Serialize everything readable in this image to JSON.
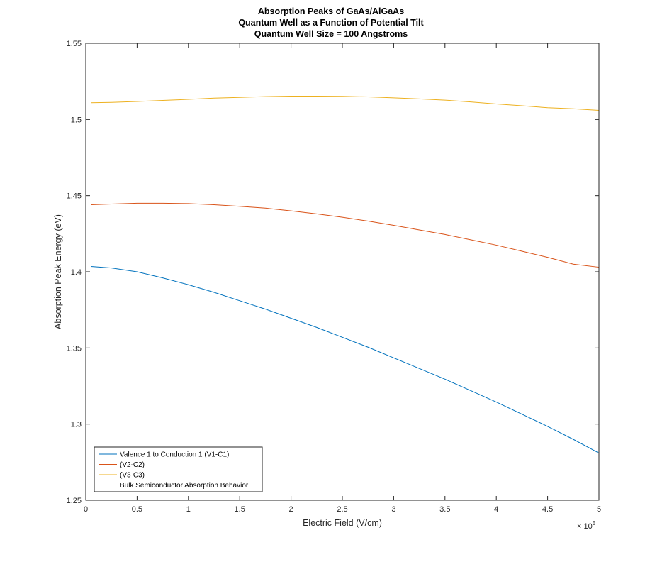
{
  "chart_data": {
    "type": "line",
    "title_lines": [
      "Absorption Peaks of GaAs/AlGaAs",
      "Quantum Well as a Function of Potential Tilt",
      "Quantum Well Size = 100 Angstroms"
    ],
    "xlabel": "Electric Field (V/cm)",
    "ylabel": "Absorption Peak Energy (eV)",
    "x_exponent_label": "× 10",
    "x_exponent": "5",
    "xlim": [
      0,
      5
    ],
    "ylim": [
      1.25,
      1.55
    ],
    "xticks": [
      "0",
      "0.5",
      "1",
      "1.5",
      "2",
      "2.5",
      "3",
      "3.5",
      "4",
      "4.5",
      "5"
    ],
    "yticks": [
      "1.25",
      "1.3",
      "1.35",
      "1.4",
      "1.45",
      "1.5",
      "1.55"
    ],
    "grid": false,
    "legend_position": "bottom-left",
    "series": [
      {
        "name": "Valence 1 to Conduction 1 (V1-C1)",
        "color": "#0072BD",
        "dash": "solid",
        "x": [
          0.05,
          0.25,
          0.5,
          0.75,
          1.0,
          1.25,
          1.5,
          1.75,
          2.0,
          2.25,
          2.5,
          2.75,
          3.0,
          3.25,
          3.5,
          3.75,
          4.0,
          4.25,
          4.5,
          4.75,
          5.0
        ],
        "y": [
          1.4035,
          1.4025,
          1.4,
          1.396,
          1.3915,
          1.3865,
          1.381,
          1.3755,
          1.3695,
          1.3635,
          1.357,
          1.3505,
          1.3435,
          1.3365,
          1.3295,
          1.322,
          1.3145,
          1.3065,
          1.2985,
          1.29,
          1.281
        ]
      },
      {
        "name": "(V2-C2)",
        "color": "#D95319",
        "dash": "solid",
        "x": [
          0.05,
          0.25,
          0.5,
          0.75,
          1.0,
          1.25,
          1.5,
          1.75,
          2.0,
          2.25,
          2.5,
          2.75,
          3.0,
          3.25,
          3.5,
          3.75,
          4.0,
          4.25,
          4.5,
          4.75,
          5.0
        ],
        "y": [
          1.444,
          1.4445,
          1.445,
          1.445,
          1.4448,
          1.444,
          1.443,
          1.4418,
          1.44,
          1.438,
          1.4358,
          1.4333,
          1.4305,
          1.4275,
          1.4245,
          1.421,
          1.4175,
          1.4135,
          1.4095,
          1.405,
          1.403
        ]
      },
      {
        "name": "(V3-C3)",
        "color": "#EDB120",
        "dash": "solid",
        "x": [
          0.05,
          0.25,
          0.5,
          0.75,
          1.0,
          1.25,
          1.5,
          1.75,
          2.0,
          2.25,
          2.5,
          2.75,
          3.0,
          3.25,
          3.5,
          3.75,
          4.0,
          4.25,
          4.5,
          4.75,
          5.0
        ],
        "y": [
          1.511,
          1.5112,
          1.5118,
          1.5125,
          1.5132,
          1.514,
          1.5145,
          1.515,
          1.5153,
          1.5153,
          1.5152,
          1.5148,
          1.5142,
          1.5135,
          1.5127,
          1.5115,
          1.5102,
          1.509,
          1.5077,
          1.507,
          1.506
        ]
      },
      {
        "name": "Bulk Semiconductor Absorption Behavior",
        "color": "#000000",
        "dash": "dashed",
        "x": [
          0.0,
          5.0
        ],
        "y": [
          1.39,
          1.39
        ]
      }
    ]
  }
}
